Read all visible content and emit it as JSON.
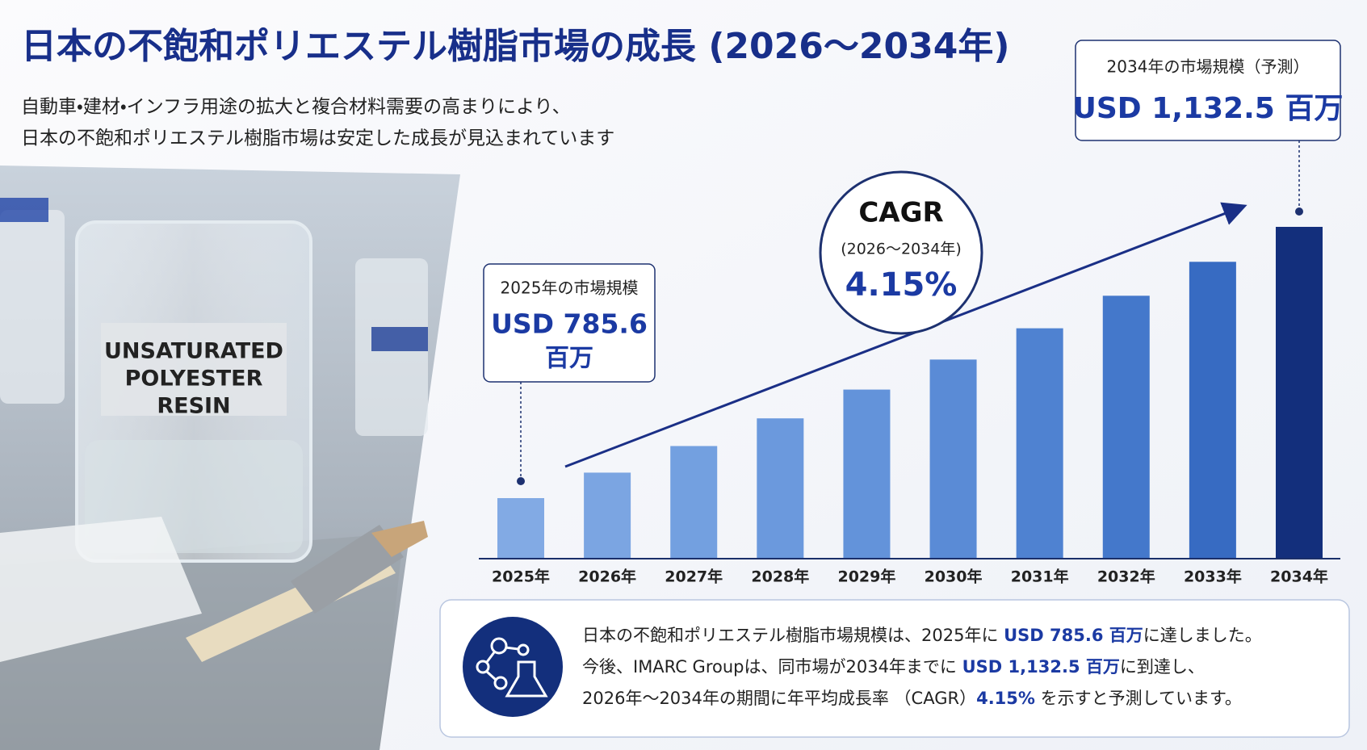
{
  "title": "日本の不飽和ポリエステル樹脂市場の成長 (2026〜2034年)",
  "subtitle": [
    "自動車・建材・インフラ用途の拡大と複合材料需要の高まりにより、",
    "日本の不飽和ポリエステル樹脂市場は安定した成長が見込まれています"
  ],
  "photo_label": [
    "UNSATURATED",
    "POLYESTER",
    "RESIN"
  ],
  "callout_2025": {
    "label": "2025年の市場規模",
    "value": "USD 785.6",
    "unit": "百万"
  },
  "callout_2034": {
    "label": "2034年の市場規模（予測）",
    "value": "USD 1,132.5 百万"
  },
  "cagr": {
    "label": "CAGR",
    "period": "(2026〜2034年)",
    "value": "4.15%"
  },
  "chart_data": {
    "type": "bar",
    "categories": [
      "2025年",
      "2026年",
      "2027年",
      "2028年",
      "2029年",
      "2030年",
      "2031年",
      "2032年",
      "2033年",
      "2034年"
    ],
    "values": [
      785.6,
      818.2,
      852.2,
      887.6,
      924.4,
      962.8,
      1002.8,
      1044.4,
      1087.8,
      1132.5
    ],
    "colors": [
      "#82aae4",
      "#7ba5e2",
      "#73a0e0",
      "#6b99dd",
      "#6393da",
      "#5a8bd6",
      "#4f82d1",
      "#4478cb",
      "#376bc2",
      "#132f7c"
    ]
  },
  "summary": [
    [
      {
        "text": "日本の不飽和ポリエステル樹脂市場規模は、2025年に ",
        "bold": false
      },
      {
        "text": "USD 785.6 百万",
        "bold": true
      },
      {
        "text": "に達しました。",
        "bold": false
      }
    ],
    [
      {
        "text": "今後、IMARC Groupは、同市場が2034年までに ",
        "bold": false
      },
      {
        "text": "USD 1,132.5 百万",
        "bold": true
      },
      {
        "text": "に到達し、",
        "bold": false
      }
    ],
    [
      {
        "text": "2026年〜2034年の期間に年平均成長率 （CAGR）",
        "bold": false
      },
      {
        "text": "4.15%",
        "bold": true
      },
      {
        "text": " を示すと予測しています。",
        "bold": false
      }
    ]
  ]
}
